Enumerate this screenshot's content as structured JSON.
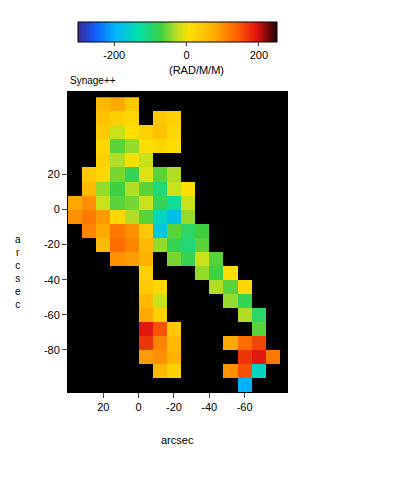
{
  "chart_data": {
    "type": "heatmap",
    "title": "Synage++",
    "x_label": "arcsec",
    "y_label": "arcsec",
    "xlim": [
      40,
      -84
    ],
    "ylim": [
      -104,
      67
    ],
    "xticks": [
      20,
      0,
      -20,
      -40,
      -60
    ],
    "yticks": [
      20,
      0,
      -20,
      -40,
      -60,
      -80
    ],
    "colorbar": {
      "label": "(RAD/M/M)",
      "range": [
        -300,
        250
      ],
      "ticks": [
        -200,
        0,
        200
      ]
    },
    "x": [
      36,
      28,
      20,
      12,
      4,
      -4,
      -12,
      -20,
      -28,
      -36,
      -44,
      -52,
      -60,
      -68,
      -76
    ],
    "y": [
      60,
      52,
      44,
      36,
      28,
      20,
      12,
      4,
      -4,
      -12,
      -20,
      -28,
      -36,
      -44,
      -52,
      -60,
      -68,
      -76,
      -84,
      -92,
      -100
    ],
    "z": [
      [
        null,
        null,
        60,
        80,
        40,
        null,
        null,
        null,
        null,
        null,
        null,
        null,
        null,
        null,
        null
      ],
      [
        null,
        null,
        50,
        30,
        20,
        null,
        40,
        30,
        null,
        null,
        null,
        null,
        null,
        null,
        null
      ],
      [
        null,
        null,
        40,
        -20,
        10,
        30,
        50,
        20,
        null,
        null,
        null,
        null,
        null,
        null,
        null
      ],
      [
        null,
        null,
        20,
        -60,
        -40,
        10,
        20,
        10,
        null,
        null,
        null,
        null,
        null,
        null,
        null
      ],
      [
        null,
        null,
        30,
        -30,
        0,
        -20,
        null,
        null,
        null,
        null,
        null,
        null,
        null,
        null,
        null
      ],
      [
        null,
        40,
        20,
        -50,
        -80,
        -10,
        -60,
        -30,
        null,
        null,
        null,
        null,
        null,
        null,
        null
      ],
      [
        null,
        60,
        -40,
        -70,
        -30,
        -60,
        -100,
        -20,
        10,
        null,
        null,
        null,
        null,
        null,
        null
      ],
      [
        80,
        100,
        -20,
        -60,
        -50,
        -20,
        -80,
        -120,
        -20,
        null,
        null,
        null,
        null,
        null,
        null
      ],
      [
        100,
        120,
        90,
        20,
        -30,
        -60,
        -150,
        -180,
        -40,
        null,
        null,
        null,
        null,
        null,
        null
      ],
      [
        null,
        110,
        80,
        120,
        100,
        40,
        -170,
        -60,
        -90,
        -70,
        null,
        null,
        null,
        null,
        null
      ],
      [
        null,
        null,
        60,
        130,
        110,
        60,
        -40,
        -80,
        -100,
        -60,
        null,
        null,
        null,
        null,
        null
      ],
      [
        null,
        null,
        null,
        100,
        90,
        70,
        null,
        -50,
        -80,
        -20,
        -60,
        null,
        null,
        null,
        null
      ],
      [
        null,
        null,
        null,
        null,
        null,
        30,
        null,
        null,
        null,
        -40,
        -70,
        10,
        null,
        null,
        null
      ],
      [
        null,
        null,
        null,
        null,
        null,
        40,
        20,
        null,
        null,
        null,
        -30,
        -60,
        20,
        null,
        null
      ],
      [
        null,
        null,
        null,
        null,
        null,
        60,
        -20,
        null,
        null,
        null,
        null,
        -40,
        -80,
        null,
        null
      ],
      [
        null,
        null,
        null,
        null,
        null,
        80,
        30,
        null,
        null,
        null,
        null,
        null,
        -30,
        -90,
        null
      ],
      [
        null,
        null,
        null,
        null,
        null,
        190,
        150,
        40,
        null,
        null,
        null,
        null,
        null,
        -60,
        null
      ],
      [
        null,
        null,
        null,
        null,
        null,
        170,
        110,
        60,
        null,
        null,
        null,
        80,
        130,
        160,
        null
      ],
      [
        null,
        null,
        null,
        null,
        null,
        90,
        100,
        70,
        null,
        null,
        null,
        null,
        170,
        190,
        120
      ],
      [
        null,
        null,
        null,
        null,
        null,
        null,
        60,
        30,
        null,
        null,
        null,
        100,
        150,
        -150,
        null
      ],
      [
        null,
        null,
        null,
        null,
        null,
        null,
        null,
        null,
        null,
        null,
        null,
        null,
        -200,
        null,
        null
      ]
    ]
  }
}
